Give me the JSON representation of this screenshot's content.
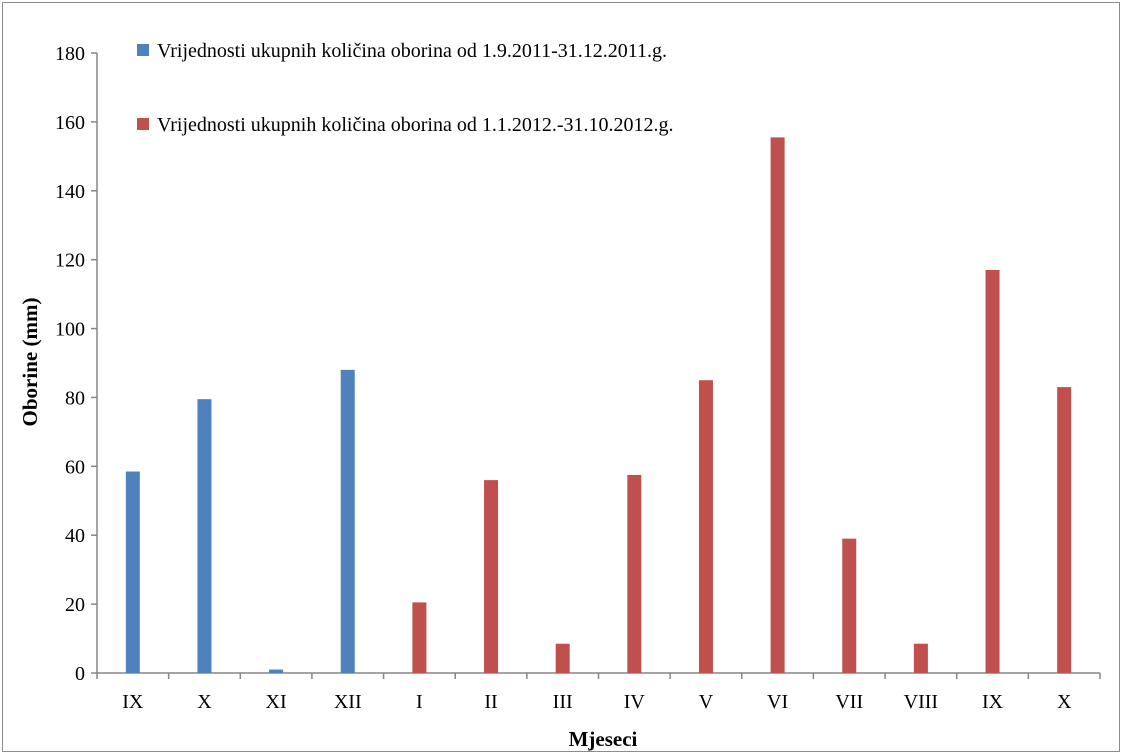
{
  "chart_data": {
    "type": "bar",
    "categories": [
      "IX",
      "X",
      "XI",
      "XII",
      "I",
      "II",
      "III",
      "IV",
      "V",
      "VI",
      "VII",
      "VIII",
      "IX",
      "X"
    ],
    "series": [
      {
        "name": "Vrijednosti ukupnih količina oborina od 1.9.2011-31.12.2011.g.",
        "color": "#4f81bd",
        "values": [
          58.5,
          79.5,
          1,
          88,
          null,
          null,
          null,
          null,
          null,
          null,
          null,
          null,
          null,
          null
        ]
      },
      {
        "name": "Vrijednosti ukupnih količina oborina od 1.1.2012.-31.10.2012.g.",
        "color": "#c0504d",
        "values": [
          null,
          null,
          null,
          null,
          20.5,
          56,
          8.5,
          57.5,
          85,
          155.5,
          39,
          8.5,
          117,
          83
        ]
      }
    ],
    "xlabel": "Mjeseci",
    "ylabel": "Oborine (mm)",
    "ylim": [
      0,
      180
    ],
    "yticks": [
      "0",
      "20",
      "40",
      "60",
      "80",
      "100",
      "120",
      "140",
      "160",
      "180"
    ],
    "grid": false,
    "legend_position": "top-left"
  }
}
